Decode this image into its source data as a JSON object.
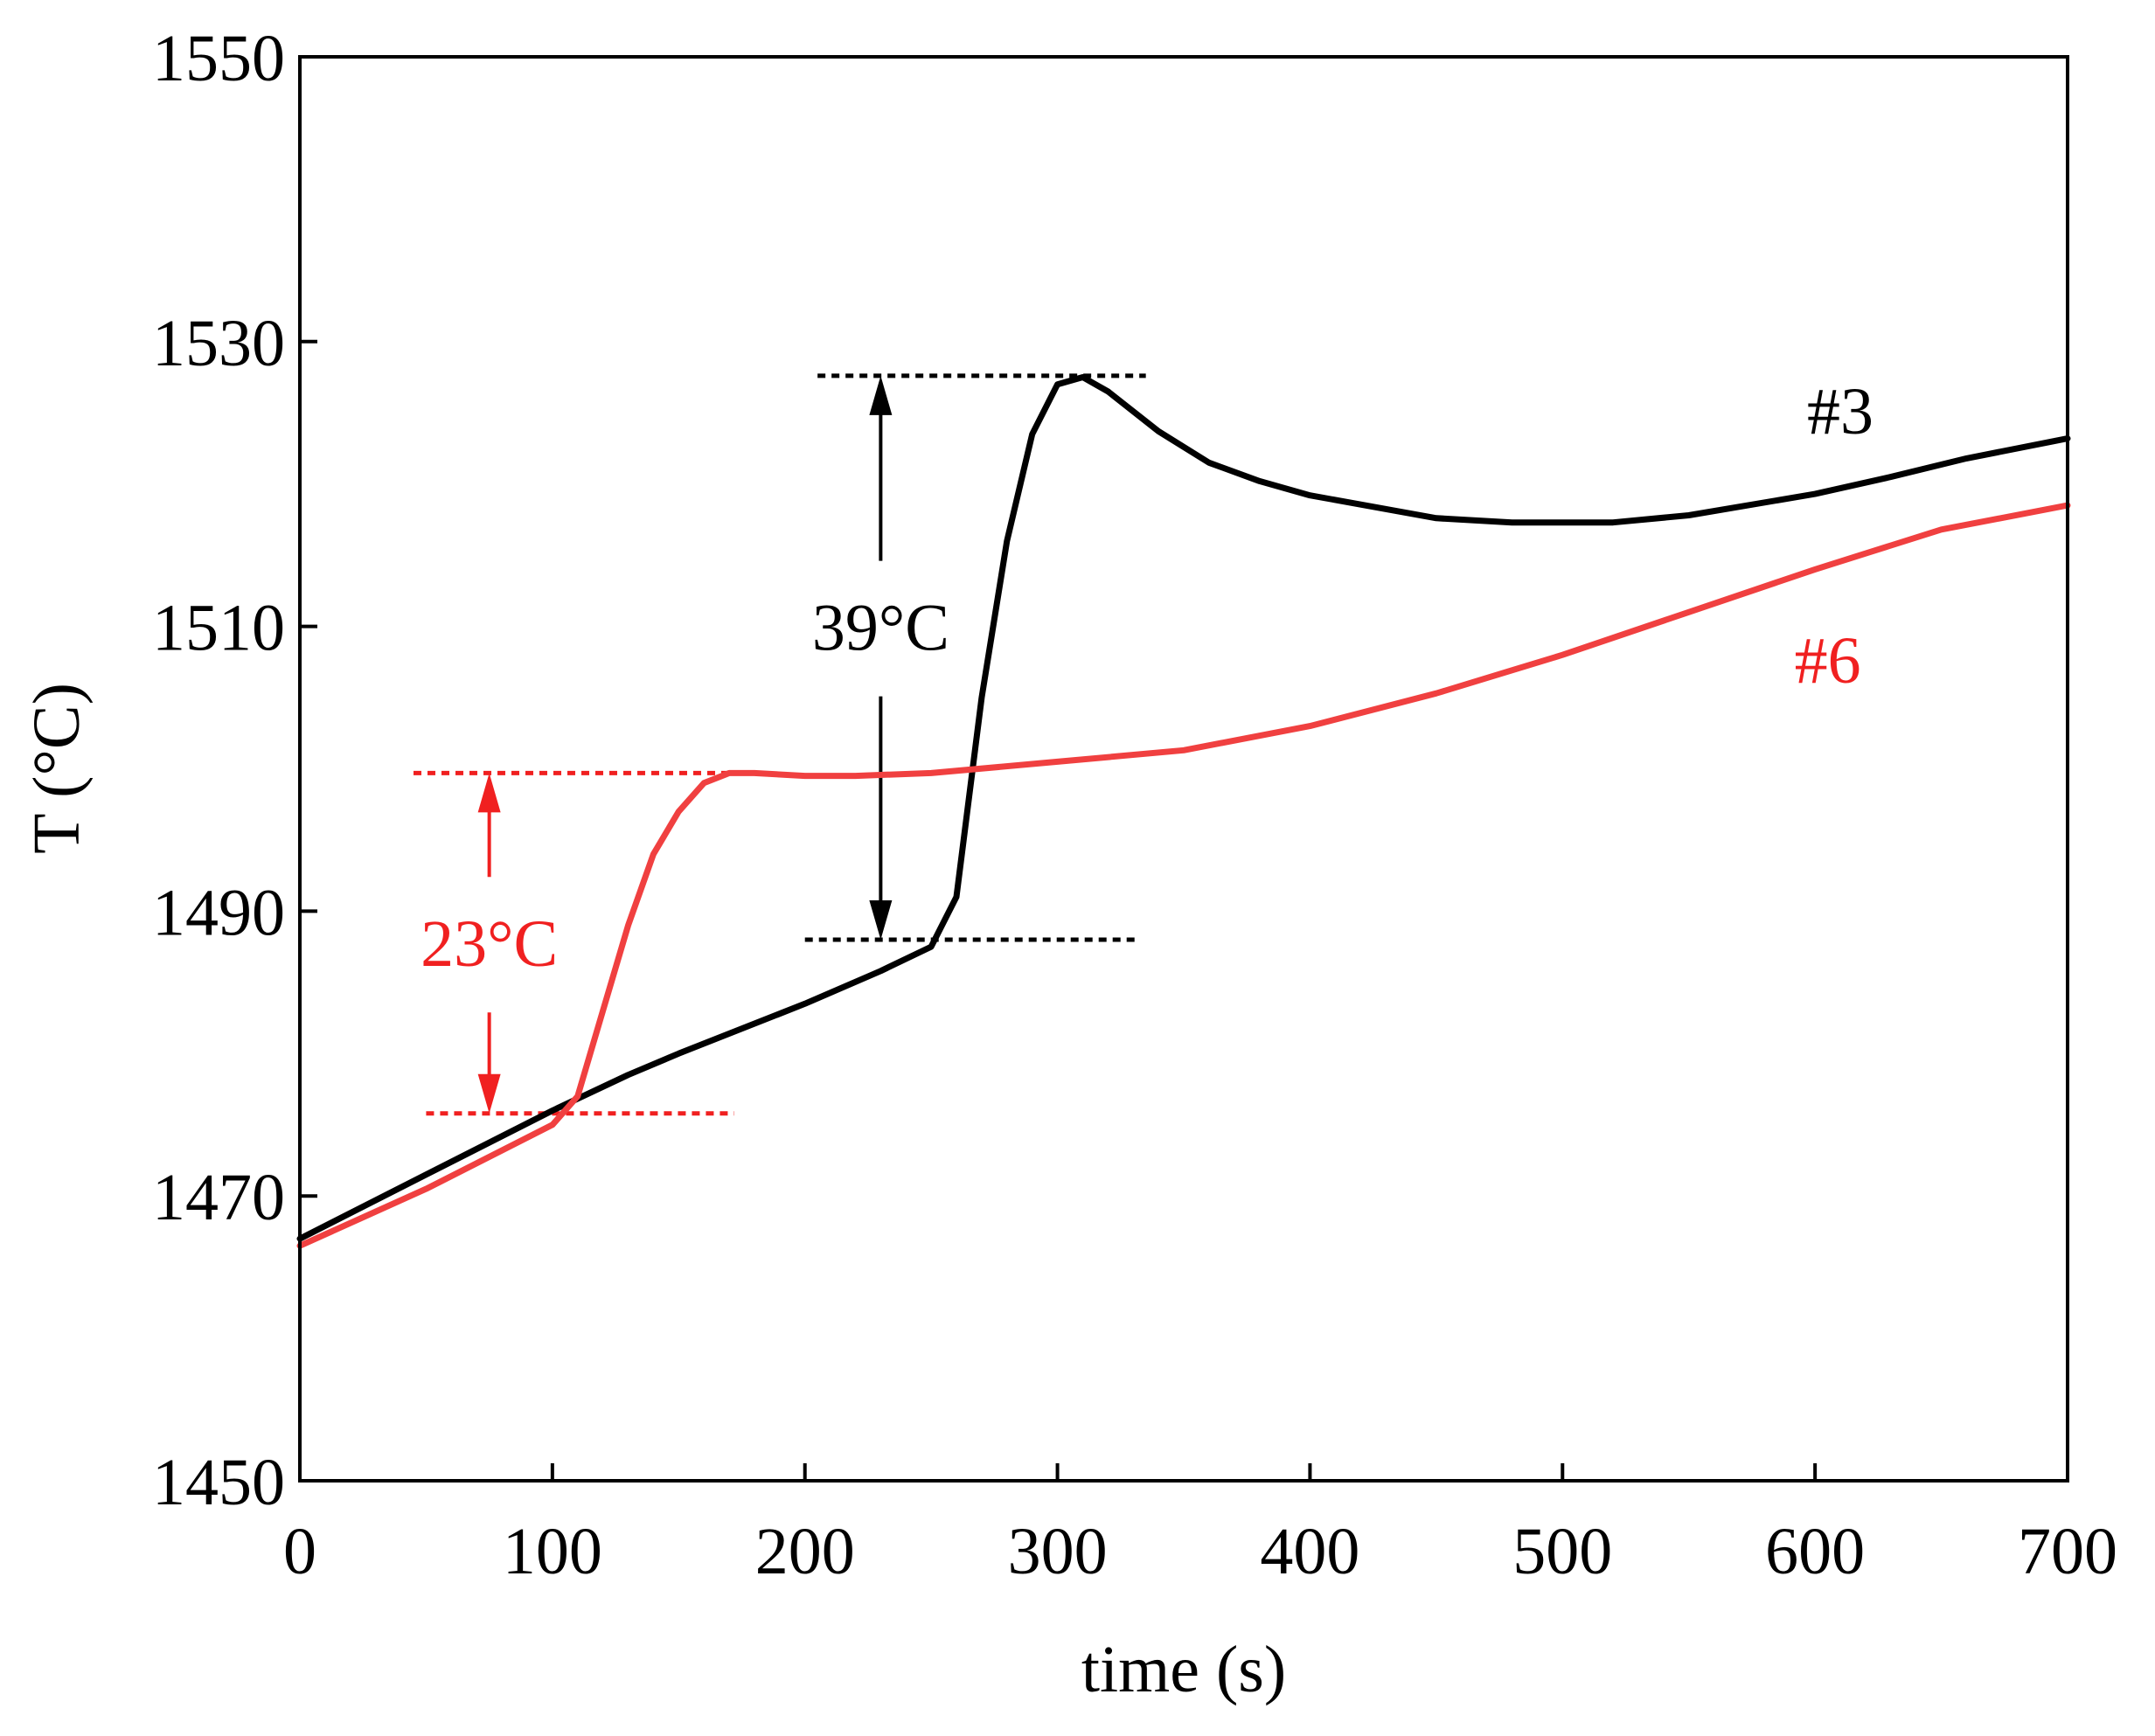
{
  "chart_data": {
    "type": "line",
    "title": "",
    "xlabel": "time (s)",
    "ylabel": "T (°C)",
    "xlim": [
      0,
      700
    ],
    "ylim": [
      1450,
      1550
    ],
    "xticks": [
      0,
      100,
      200,
      300,
      400,
      500,
      600,
      700
    ],
    "yticks": [
      1450,
      1470,
      1490,
      1510,
      1530,
      1550
    ],
    "grid": false,
    "series": [
      {
        "name": "#3",
        "color": "#000000",
        "x": [
          0,
          50,
          100,
          130,
          150,
          200,
          230,
          250,
          260,
          270,
          280,
          290,
          300,
          310,
          320,
          340,
          360,
          380,
          400,
          450,
          480,
          520,
          550,
          600,
          630,
          660,
          700
        ],
        "y": [
          1467,
          1471.5,
          1476,
          1478.5,
          1480,
          1483.5,
          1485.8,
          1487.5,
          1491,
          1505,
          1516,
          1523.5,
          1527,
          1527.5,
          1526.5,
          1523.7,
          1521.5,
          1520.2,
          1519.2,
          1517.6,
          1517.3,
          1517.3,
          1517.8,
          1519.3,
          1520.5,
          1521.8,
          1523.2
        ]
      },
      {
        "name": "#6",
        "color": "#f04040",
        "x": [
          0,
          50,
          100,
          110,
          120,
          130,
          140,
          150,
          160,
          170,
          180,
          200,
          220,
          250,
          300,
          350,
          400,
          450,
          500,
          550,
          600,
          650,
          700
        ],
        "y": [
          1466.5,
          1470.5,
          1475,
          1477,
          1483,
          1489,
          1494,
          1497,
          1499,
          1499.7,
          1499.7,
          1499.5,
          1499.5,
          1499.7,
          1500.5,
          1501.3,
          1503,
          1505.3,
          1508,
          1511,
          1514,
          1516.8,
          1518.5
        ]
      }
    ],
    "annotations": [
      {
        "text": "39°C",
        "color": "#000000",
        "x_text": 230,
        "y_text": 1510,
        "x_arrow": 230,
        "y_top": 1527.6,
        "y_bottom": 1488,
        "ref_top": {
          "y": 1527.6,
          "x1": 205,
          "x2": 335
        },
        "ref_bottom": {
          "y": 1488,
          "x1": 200,
          "x2": 332
        }
      },
      {
        "text": "23°C",
        "color": "#f02020",
        "x_text": 75,
        "y_text": 1487.8,
        "x_arrow": 75,
        "y_top": 1499.7,
        "y_bottom": 1475.8,
        "ref_top": {
          "y": 1499.7,
          "x1": 45,
          "x2": 175
        },
        "ref_bottom": {
          "y": 1475.8,
          "x1": 50,
          "x2": 172
        }
      }
    ],
    "series_labels": [
      {
        "text": "#3",
        "color": "#000000",
        "x": 610,
        "y": 1525.2
      },
      {
        "text": "#6",
        "color": "#f02020",
        "x": 605,
        "y": 1507.7
      }
    ]
  }
}
